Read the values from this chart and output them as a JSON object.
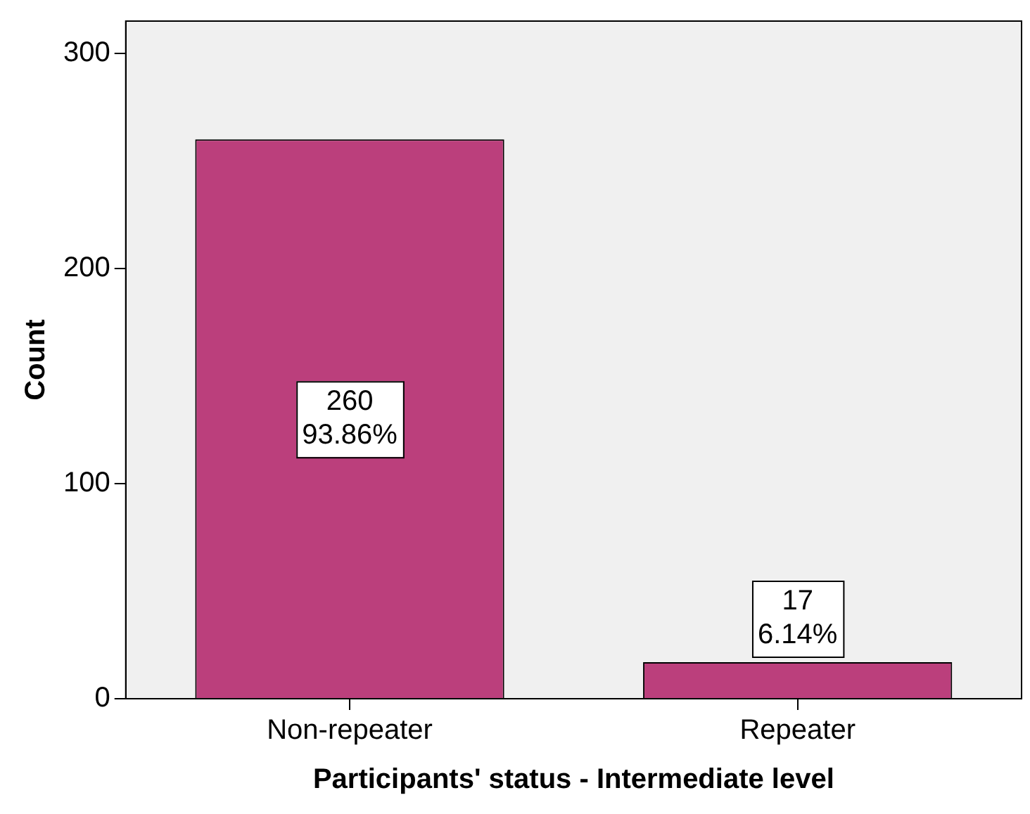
{
  "chart_data": {
    "type": "bar",
    "xlabel": "Participants' status - Intermediate level",
    "ylabel": "Count",
    "categories": [
      "Non-repeater",
      "Repeater"
    ],
    "values": [
      260,
      17
    ],
    "color": "#bb3f7c",
    "value_labels": [
      "260\n93.86%",
      "17\n6.14%"
    ],
    "ylim": [
      0,
      315
    ],
    "yticks": [
      0,
      100,
      200,
      300
    ],
    "grid": false,
    "legend": false
  }
}
